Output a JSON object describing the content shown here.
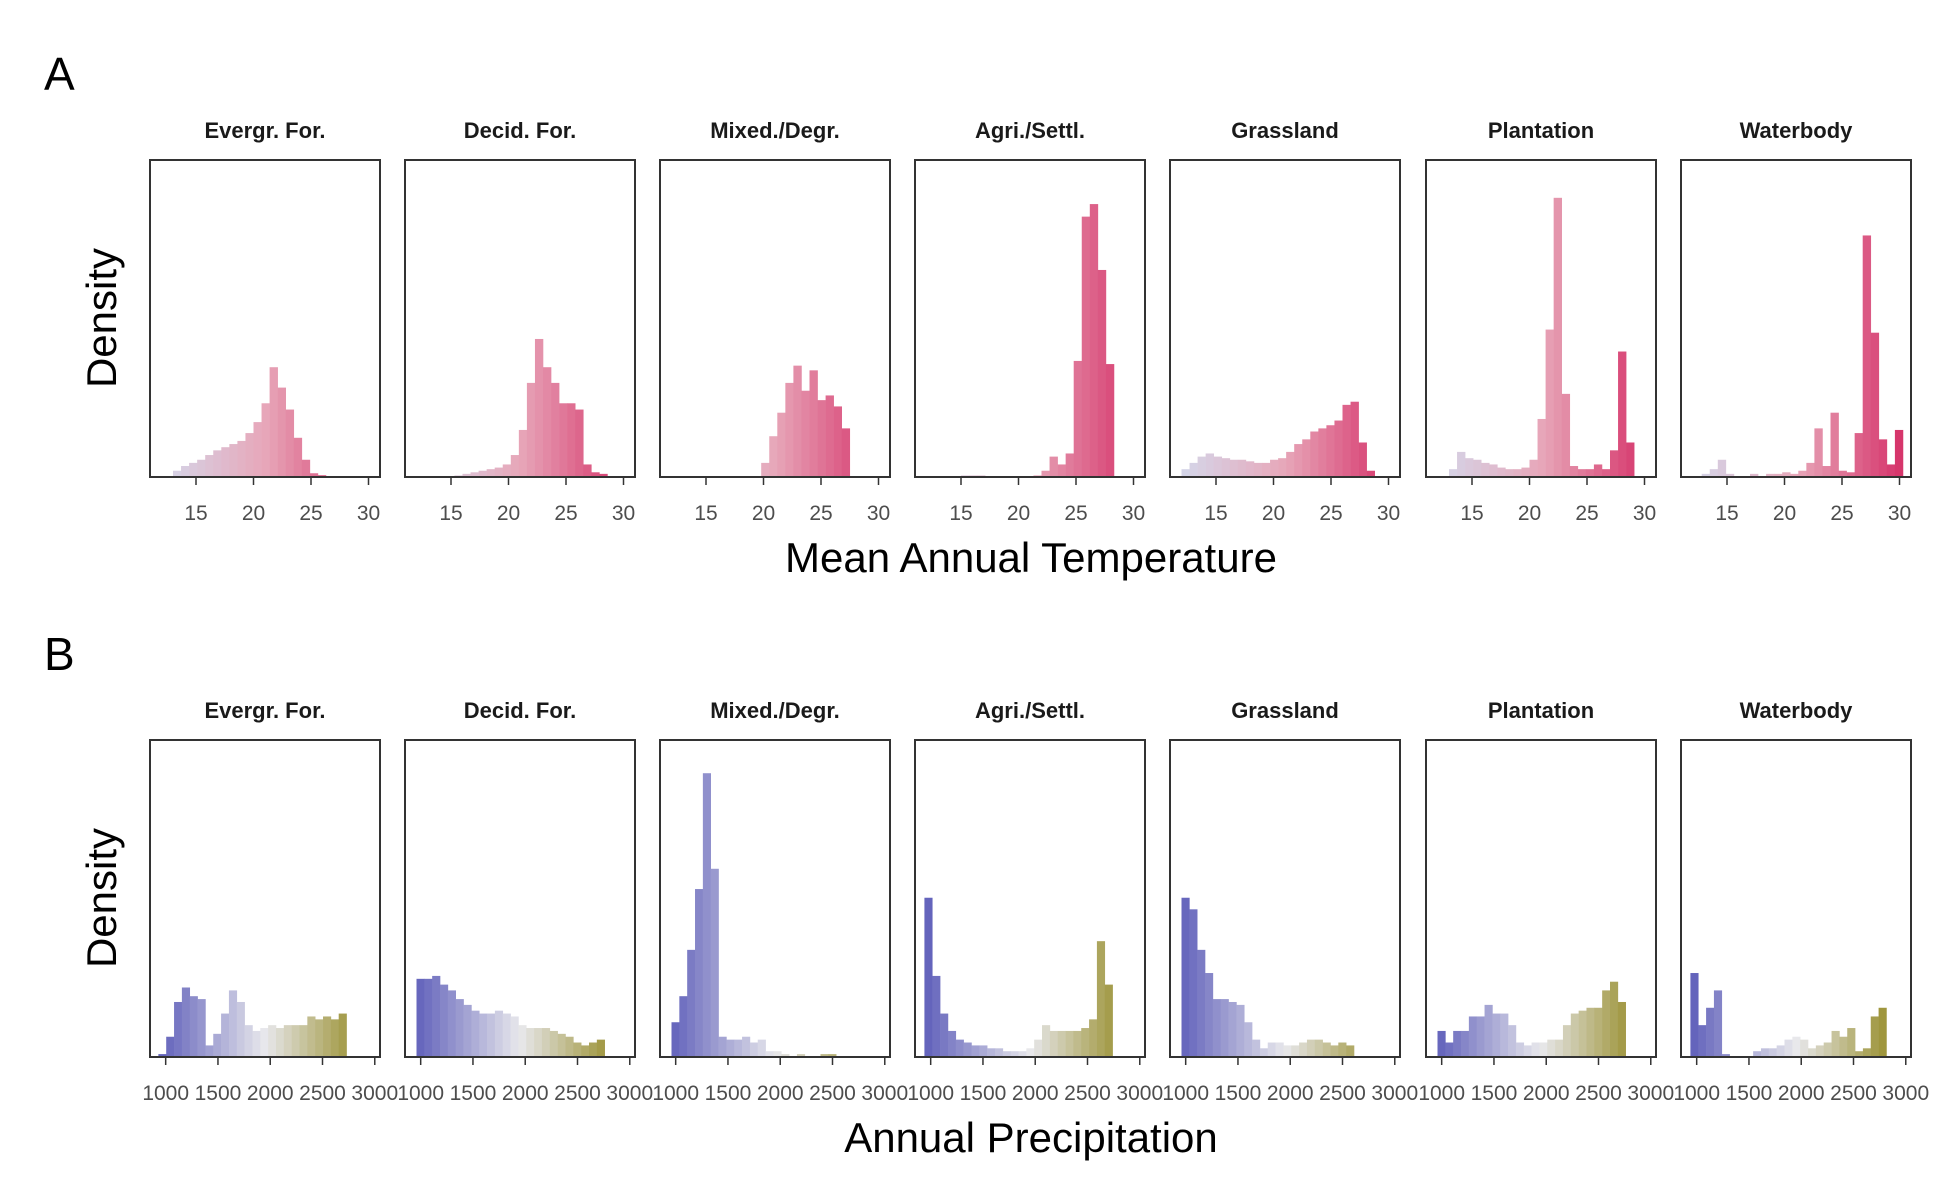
{
  "chart_data": [
    {
      "panel_label": "A",
      "type": "bar",
      "chart_kind": "faceted histogram",
      "xlabel": "Mean Annual Temperature",
      "ylabel": "Density",
      "xlim": [
        11,
        31
      ],
      "xticks": [
        15,
        20,
        25,
        30
      ],
      "bin_width": 0.7,
      "y_axis_labels_shown": false,
      "colors": {
        "low": "#d4d7ea",
        "mid": "#e7a7b9",
        "high": "#d6356b"
      },
      "color_range": [
        12,
        30
      ],
      "facets": [
        {
          "name": "Evergr. For.",
          "start": 13.0,
          "values": [
            0.2,
            0.35,
            0.45,
            0.55,
            0.7,
            0.85,
            0.95,
            1.05,
            1.15,
            1.4,
            1.75,
            2.35,
            3.5,
            2.85,
            2.15,
            1.25,
            0.55,
            0.12,
            0.06
          ]
        },
        {
          "name": "Decid. For.",
          "start": 13.2,
          "values": [
            0,
            0,
            0,
            0.05,
            0.1,
            0.15,
            0.2,
            0.25,
            0.3,
            0.4,
            0.7,
            1.5,
            3.0,
            4.4,
            3.5,
            3.0,
            2.35,
            2.35,
            2.15,
            0.4,
            0.15,
            0.1
          ]
        },
        {
          "name": "Mixed./Degr.",
          "start": 19.8,
          "values": [
            0.45,
            1.3,
            2.05,
            3.0,
            3.55,
            2.75,
            3.4,
            2.45,
            2.6,
            2.25,
            1.55
          ]
        },
        {
          "name": "Agri./Settl.",
          "start": 15.0,
          "values": [
            0.05,
            0.05,
            0.05,
            0,
            0,
            0,
            0,
            0,
            0,
            0.05,
            0.2,
            0.65,
            0.4,
            0.75,
            3.7,
            8.3,
            8.7,
            6.6,
            3.6
          ]
        },
        {
          "name": "Grassland",
          "start": 12.0,
          "values": [
            0.25,
            0.45,
            0.65,
            0.75,
            0.65,
            0.6,
            0.55,
            0.55,
            0.5,
            0.45,
            0.45,
            0.55,
            0.6,
            0.8,
            1.05,
            1.2,
            1.45,
            1.55,
            1.65,
            1.8,
            2.3,
            2.4,
            1.1,
            0.2
          ]
        },
        {
          "name": "Plantation",
          "start": 13.0,
          "values": [
            0.25,
            0.8,
            0.6,
            0.55,
            0.45,
            0.4,
            0.3,
            0.25,
            0.25,
            0.3,
            0.55,
            1.85,
            4.7,
            8.9,
            2.65,
            0.35,
            0.25,
            0.25,
            0.4,
            0.25,
            0.85,
            4.0,
            1.1,
            0
          ]
        },
        {
          "name": "Waterbody",
          "start": 12.8,
          "values": [
            0.1,
            0.25,
            0.55,
            0.1,
            0,
            0,
            0.1,
            0,
            0.1,
            0.1,
            0.15,
            0.1,
            0.2,
            0.45,
            1.55,
            0.35,
            2.05,
            0.2,
            0.15,
            1.4,
            7.7,
            4.6,
            1.2,
            0.4,
            1.5
          ]
        }
      ]
    },
    {
      "panel_label": "B",
      "type": "bar",
      "chart_kind": "faceted histogram",
      "xlabel": "Annual Precipitation",
      "ylabel": "Density",
      "xlim": [
        850,
        3050
      ],
      "xticks": [
        1000,
        1500,
        2000,
        2500,
        3000
      ],
      "xticklabels": [
        "1000",
        "1500",
        "2000",
        "2500",
        "3000"
      ],
      "bin_width": 75,
      "y_axis_labels_shown": false,
      "colors": {
        "low": "#5a5ab8",
        "mid": "#e8e8ec",
        "high": "#8b800e"
      },
      "color_range": [
        900,
        3000
      ],
      "facets": [
        {
          "name": "Evergr. For.",
          "start": 930,
          "values": [
            0.05,
            0.35,
            0.95,
            1.2,
            1.05,
            1.0,
            0.2,
            0.4,
            0.75,
            1.15,
            0.95,
            0.55,
            0.45,
            0.5,
            0.55,
            0.5,
            0.55,
            0.55,
            0.55,
            0.7,
            0.65,
            0.7,
            0.65,
            0.75
          ]
        },
        {
          "name": "Decid. For.",
          "start": 960,
          "values": [
            1.35,
            1.35,
            1.4,
            1.25,
            1.15,
            1.0,
            0.9,
            0.8,
            0.75,
            0.75,
            0.8,
            0.75,
            0.7,
            0.55,
            0.5,
            0.5,
            0.5,
            0.45,
            0.4,
            0.35,
            0.25,
            0.2,
            0.25,
            0.3
          ]
        },
        {
          "name": "Mixed./Degr.",
          "start": 960,
          "values": [
            0.6,
            1.05,
            1.85,
            2.9,
            4.9,
            3.25,
            0.35,
            0.3,
            0.3,
            0.35,
            0.25,
            0.3,
            0.1,
            0.1,
            0.05,
            0,
            0.05,
            0,
            0,
            0.05,
            0.05
          ]
        },
        {
          "name": "Agri./Settl.",
          "start": 940,
          "values": [
            2.75,
            1.4,
            0.75,
            0.45,
            0.3,
            0.25,
            0.2,
            0.2,
            0.15,
            0.15,
            0.1,
            0.1,
            0.1,
            0.15,
            0.3,
            0.55,
            0.45,
            0.45,
            0.45,
            0.45,
            0.5,
            0.65,
            2.0,
            1.25
          ]
        },
        {
          "name": "Grassland",
          "start": 960,
          "values": [
            2.75,
            2.55,
            1.85,
            1.45,
            1.0,
            1.0,
            0.95,
            0.9,
            0.6,
            0.3,
            0.15,
            0.25,
            0.25,
            0.2,
            0.2,
            0.25,
            0.3,
            0.3,
            0.25,
            0.2,
            0.25,
            0.2
          ]
        },
        {
          "name": "Plantation",
          "start": 960,
          "values": [
            0.45,
            0.25,
            0.45,
            0.45,
            0.7,
            0.7,
            0.9,
            0.75,
            0.75,
            0.55,
            0.25,
            0.2,
            0.25,
            0.25,
            0.3,
            0.3,
            0.55,
            0.75,
            0.8,
            0.85,
            0.85,
            1.15,
            1.3,
            0.95
          ]
        },
        {
          "name": "Waterbody",
          "start": 940,
          "values": [
            1.45,
            0.55,
            0.85,
            1.15,
            0.05,
            0,
            0,
            0,
            0.1,
            0.15,
            0.15,
            0.2,
            0.3,
            0.35,
            0.3,
            0.15,
            0.2,
            0.25,
            0.45,
            0.35,
            0.5,
            0.1,
            0.15,
            0.7,
            0.85
          ]
        }
      ]
    }
  ]
}
